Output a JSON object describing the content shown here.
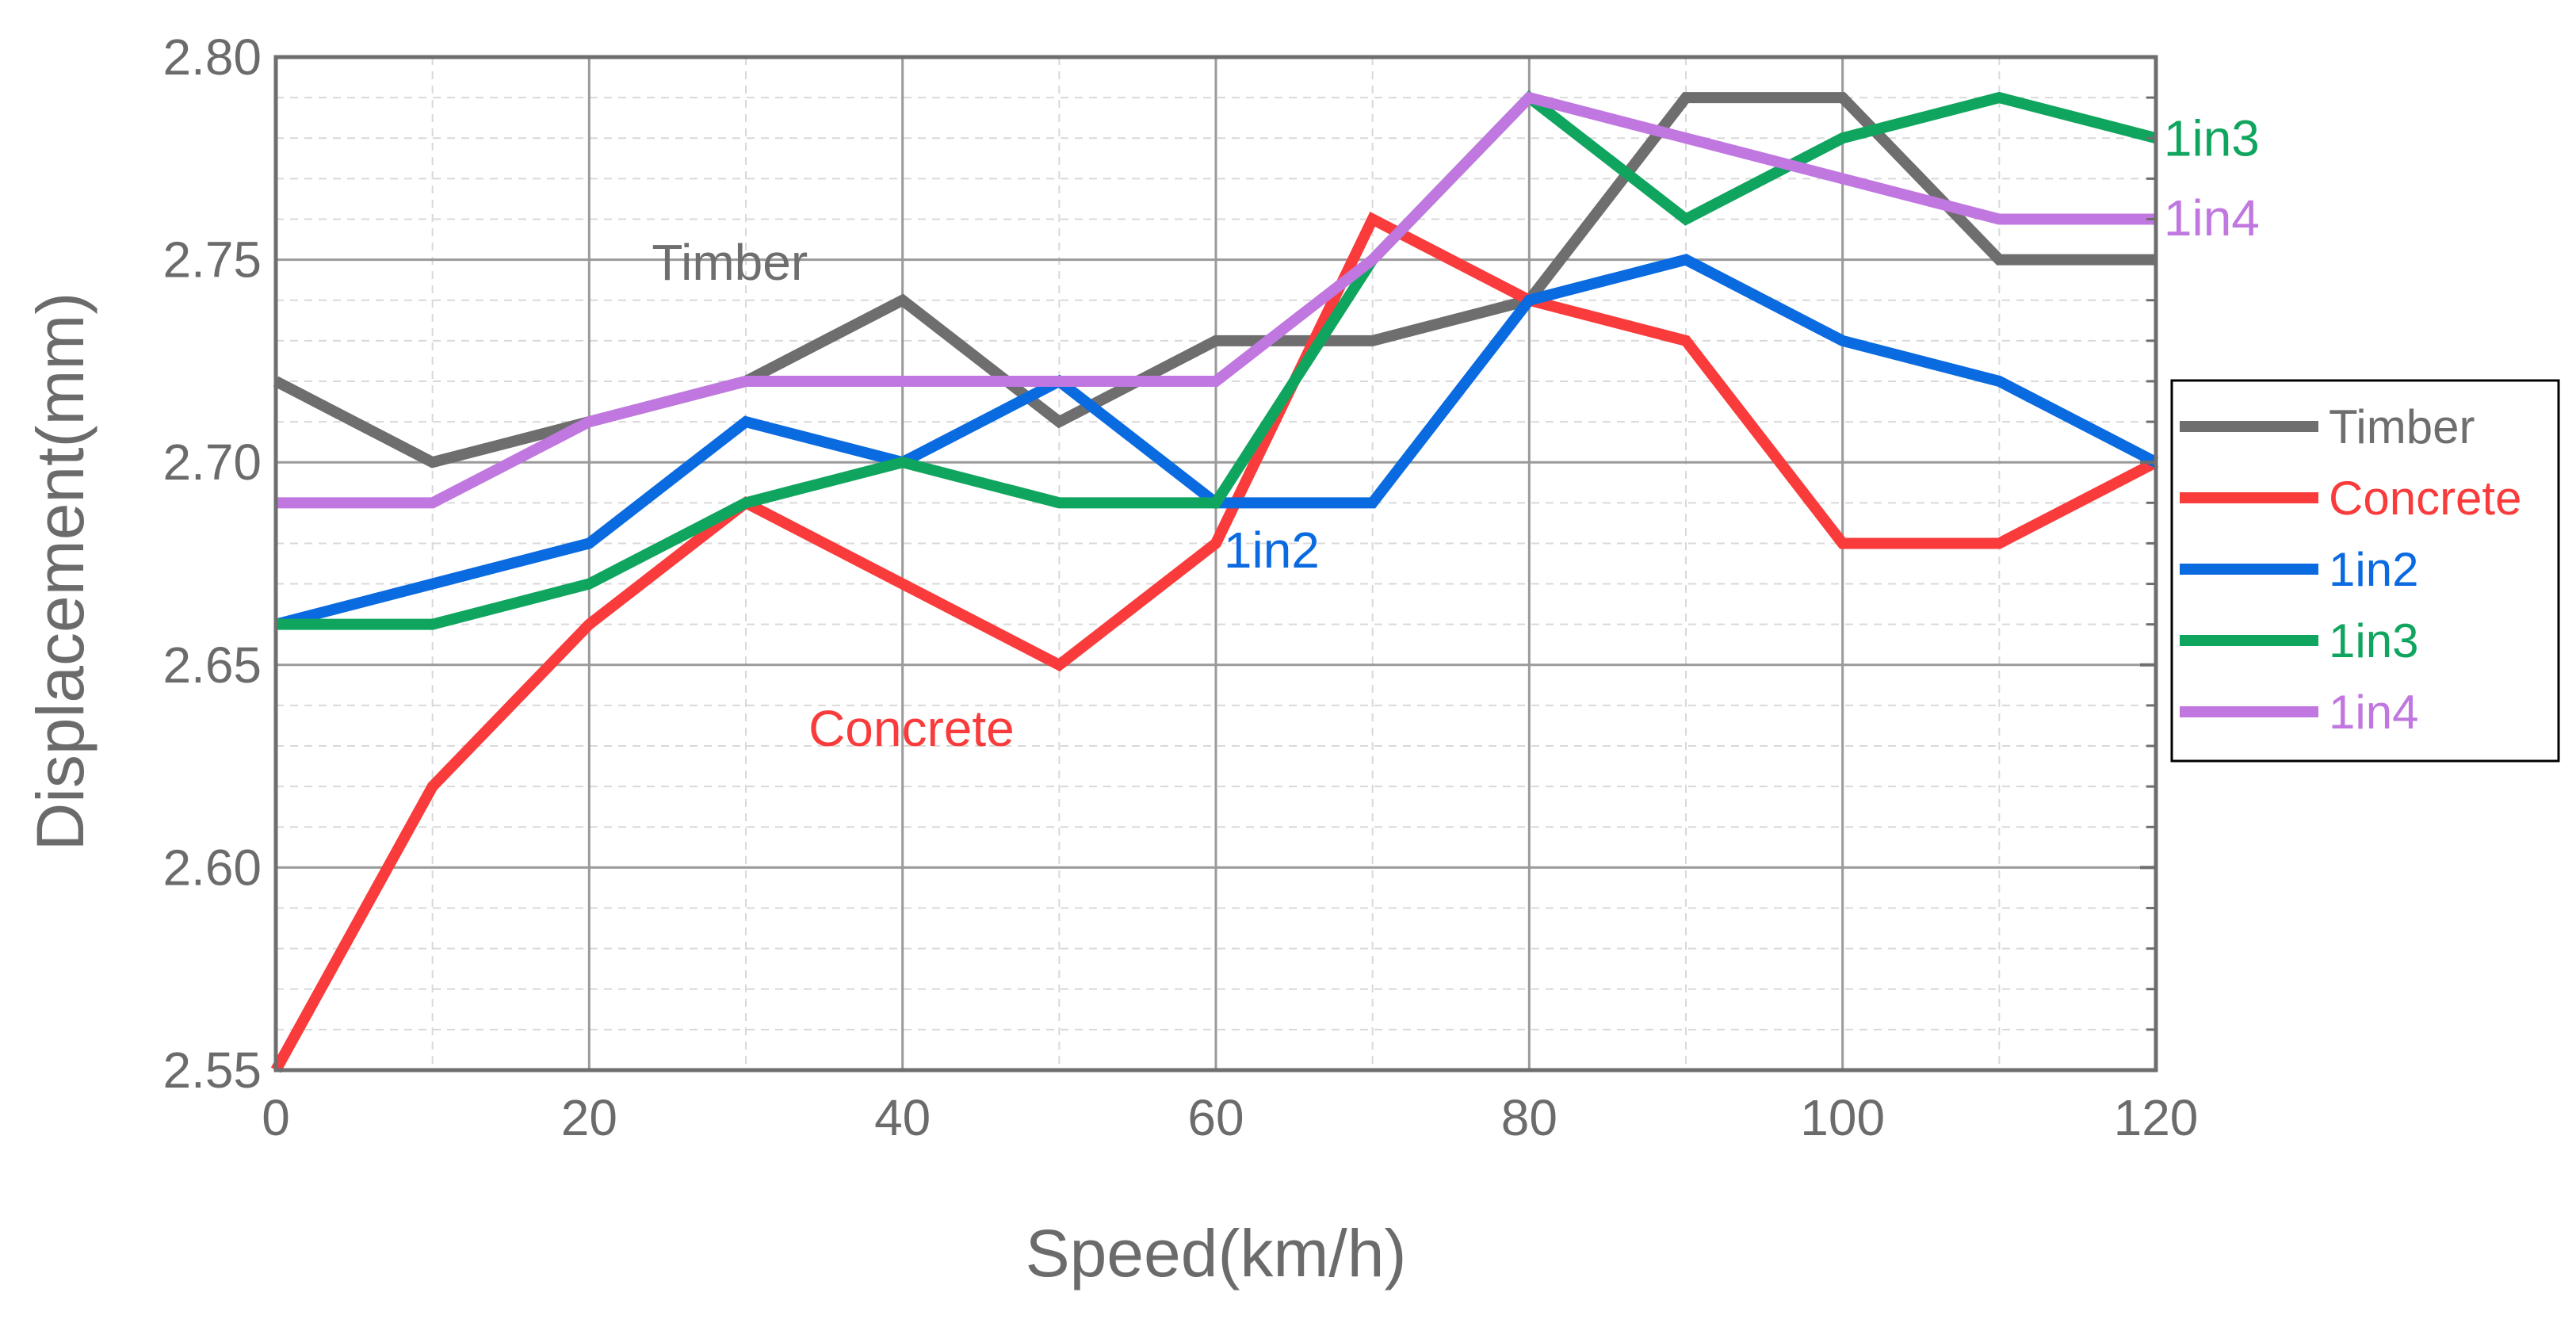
{
  "chart_data": {
    "type": "line",
    "title": "",
    "xlabel": "Speed(km/h)",
    "ylabel": "Displacement(mm)",
    "xlim": [
      0,
      120
    ],
    "ylim": [
      2.55,
      2.8
    ],
    "xticks": [
      "0",
      "20",
      "40",
      "60",
      "80",
      "100",
      "120"
    ],
    "yticks": [
      "2.55",
      "2.60",
      "2.65",
      "2.70",
      "2.75",
      "2.80"
    ],
    "grid": true,
    "legend_position": "right",
    "x": [
      0,
      10,
      20,
      30,
      40,
      50,
      60,
      70,
      80,
      90,
      100,
      110,
      120
    ],
    "series": [
      {
        "name": "Timber",
        "color": "#6e6e6e",
        "values": [
          2.72,
          2.7,
          2.71,
          2.72,
          2.74,
          2.71,
          2.73,
          2.73,
          2.74,
          2.79,
          2.79,
          2.75,
          2.75
        ]
      },
      {
        "name": "Concrete",
        "color": "#fa3b3b",
        "values": [
          2.55,
          2.62,
          2.66,
          2.69,
          2.67,
          2.65,
          2.68,
          2.76,
          2.74,
          2.73,
          2.68,
          2.68,
          2.7
        ]
      },
      {
        "name": "1in2",
        "color": "#0a6ae0",
        "values": [
          2.66,
          2.67,
          2.68,
          2.71,
          2.7,
          2.72,
          2.69,
          2.69,
          2.74,
          2.75,
          2.73,
          2.72,
          2.7
        ]
      },
      {
        "name": "1in3",
        "color": "#10a55e",
        "values": [
          2.66,
          2.66,
          2.67,
          2.69,
          2.7,
          2.69,
          2.69,
          2.75,
          2.79,
          2.76,
          2.78,
          2.79,
          2.78
        ]
      },
      {
        "name": "1in4",
        "color": "#c077e0",
        "values": [
          2.69,
          2.69,
          2.71,
          2.72,
          2.72,
          2.72,
          2.72,
          2.75,
          2.79,
          2.78,
          2.77,
          2.76,
          2.76
        ]
      }
    ],
    "annotations": [
      {
        "text": "Timber",
        "color": "#6e6e6e"
      },
      {
        "text": "Concrete",
        "color": "#fa3b3b"
      },
      {
        "text": "1in2",
        "color": "#0a6ae0"
      },
      {
        "text": "1in3",
        "color": "#10a55e"
      },
      {
        "text": "1in4",
        "color": "#c077e0"
      }
    ]
  }
}
